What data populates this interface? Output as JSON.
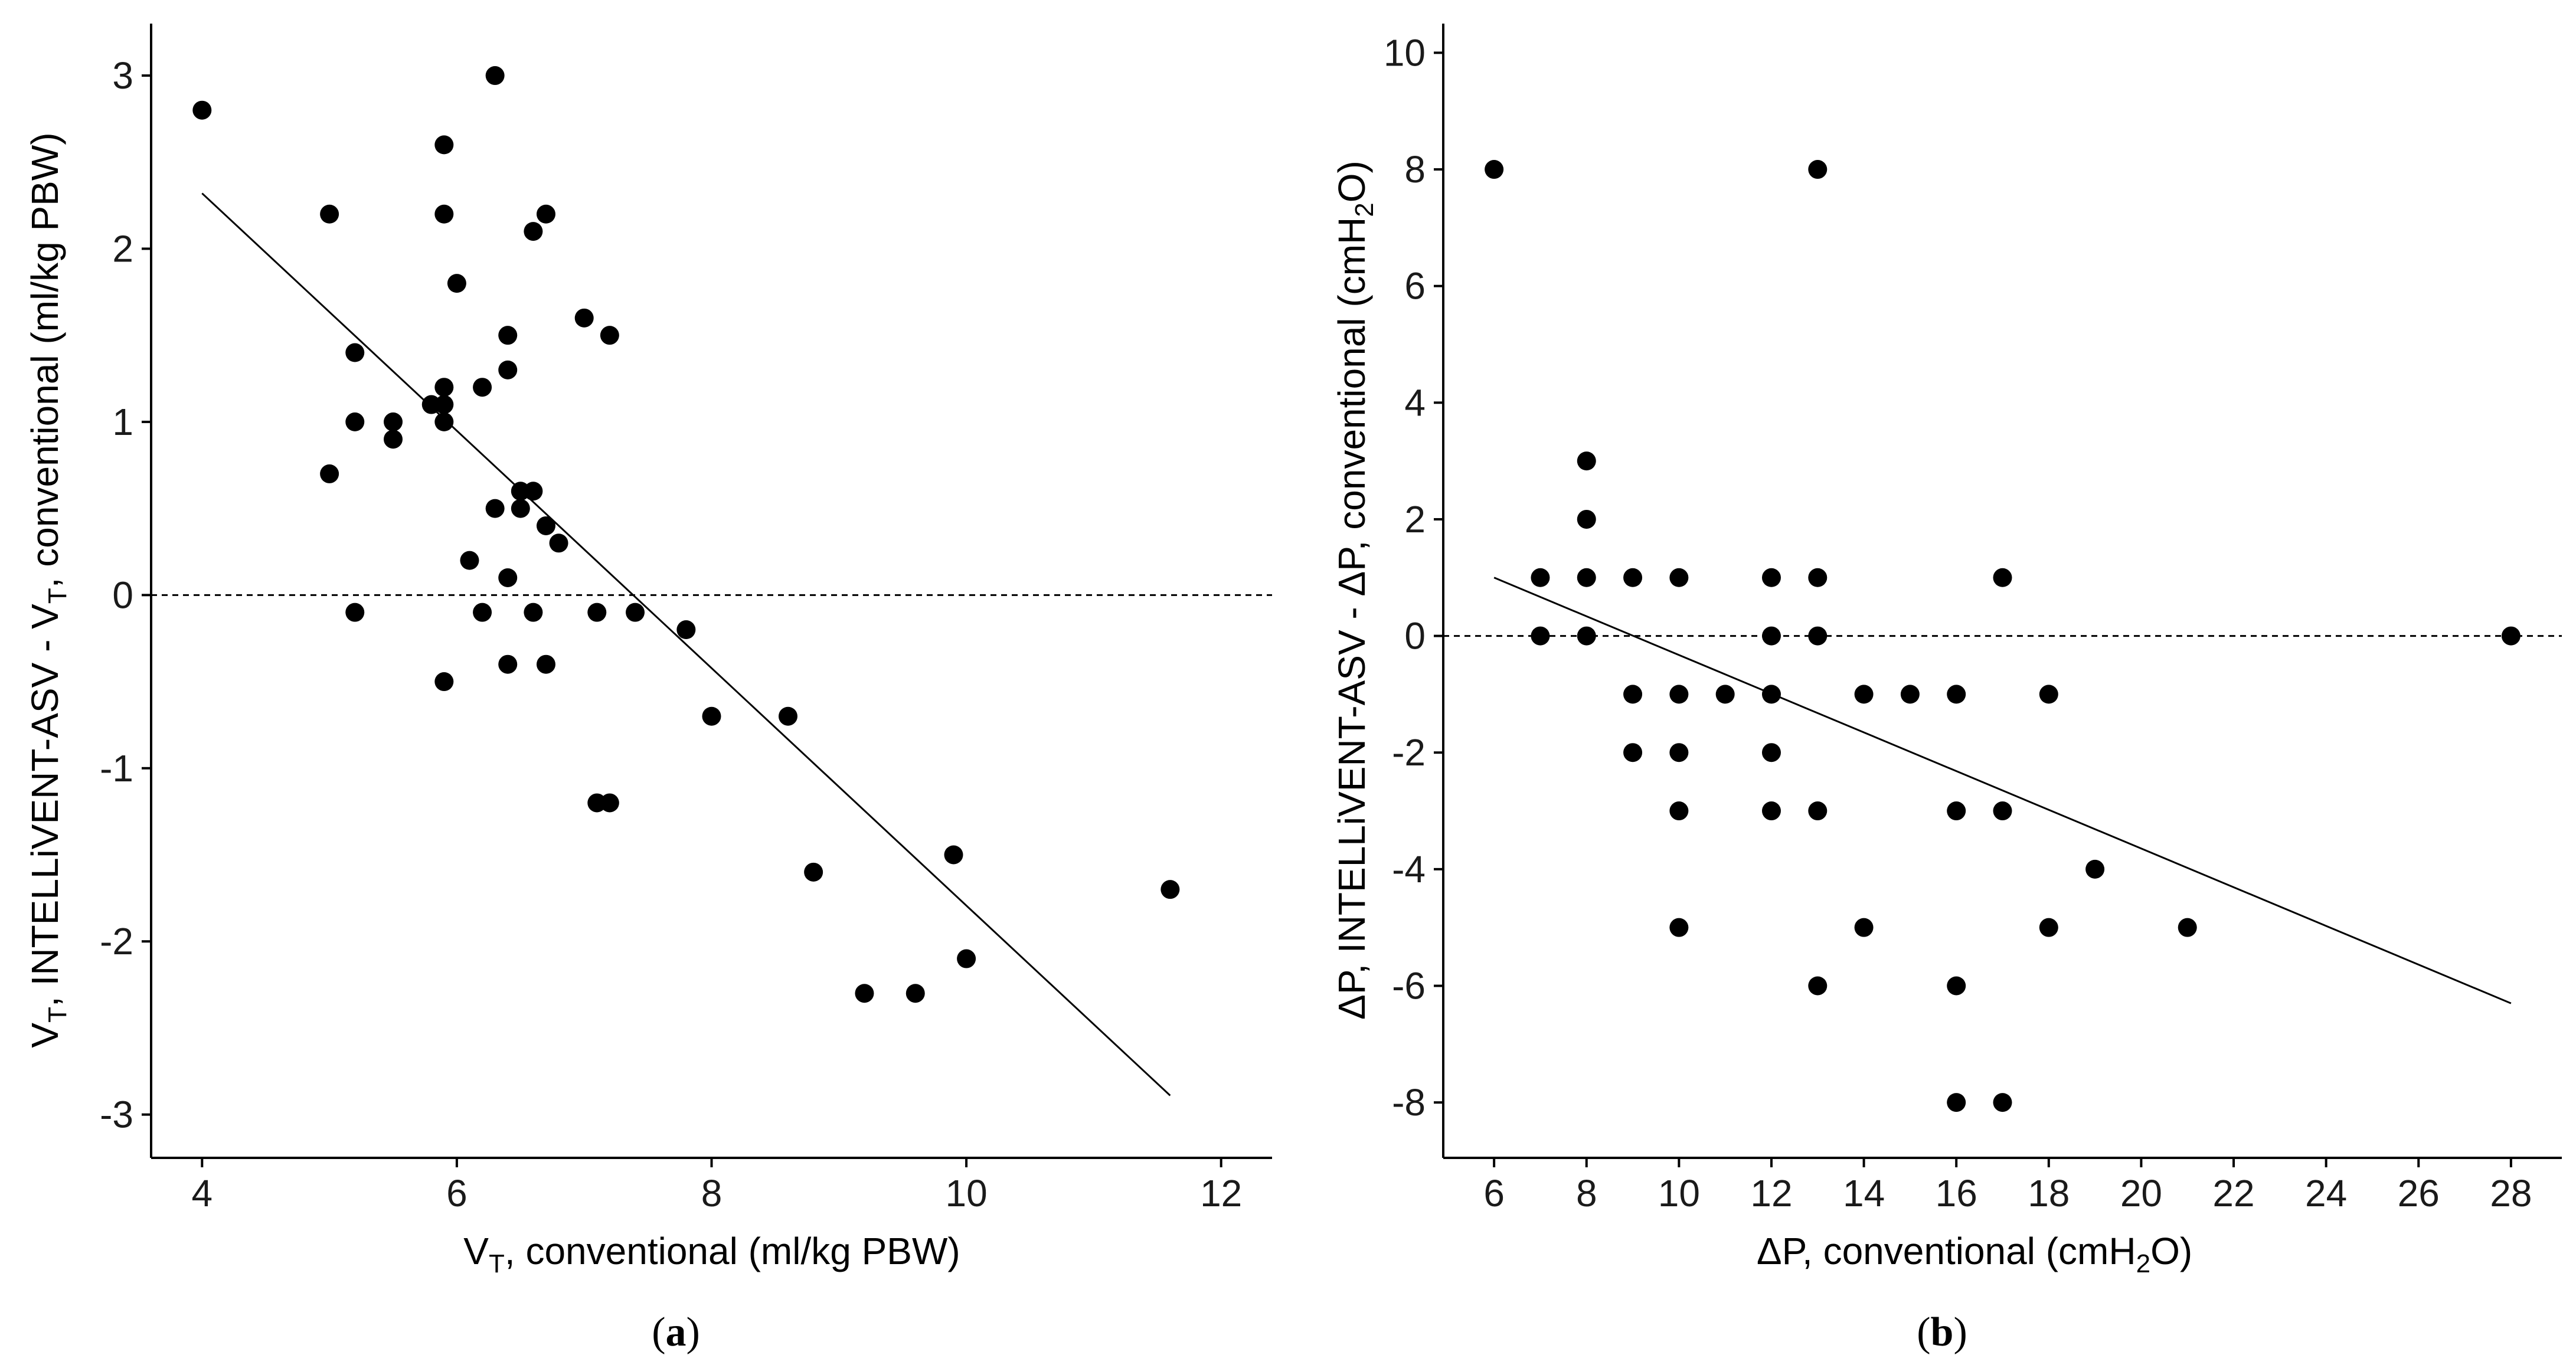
{
  "colors": {
    "point": "#000000",
    "line": "#000000",
    "axis": "#000000",
    "background": "#ffffff"
  },
  "chart_data": [
    {
      "type": "scatter",
      "panel_label": "a",
      "xlabel": {
        "main": "V",
        "sub": "T",
        "rest": ", conventional (ml/kg PBW)"
      },
      "ylabel": {
        "p1": "V",
        "s1": "T",
        "p2": ", INTELLiVENT-ASV - V",
        "s2": "T",
        "p3": ", conventional (ml/kg PBW)"
      },
      "xlim": [
        3.6,
        12.4
      ],
      "ylim": [
        -3.25,
        3.3
      ],
      "xticks": [
        4,
        6,
        8,
        10,
        12
      ],
      "xtick_labels": [
        "4",
        "6",
        "8",
        "10",
        "12"
      ],
      "yticks": [
        3,
        2,
        1,
        0,
        -1,
        -2,
        -3
      ],
      "ytick_labels": [
        "3",
        "2",
        "1",
        "0",
        "-1",
        "-2",
        "-3"
      ],
      "reference_line_y": 0,
      "regression_line": {
        "x": [
          4.0,
          11.6
        ],
        "y": [
          2.32,
          -2.89
        ]
      },
      "points": [
        [
          4.0,
          2.8
        ],
        [
          5.0,
          2.2
        ],
        [
          5.0,
          0.7
        ],
        [
          5.2,
          1.4
        ],
        [
          5.2,
          1.0
        ],
        [
          5.2,
          -0.1
        ],
        [
          5.5,
          1.0
        ],
        [
          5.5,
          0.9
        ],
        [
          5.8,
          1.1
        ],
        [
          5.9,
          2.6
        ],
        [
          5.9,
          2.2
        ],
        [
          5.9,
          1.2
        ],
        [
          5.9,
          1.1
        ],
        [
          5.9,
          1.0
        ],
        [
          5.9,
          -0.5
        ],
        [
          6.0,
          1.8
        ],
        [
          6.1,
          0.2
        ],
        [
          6.2,
          1.2
        ],
        [
          6.2,
          -0.1
        ],
        [
          6.3,
          3.0
        ],
        [
          6.3,
          0.5
        ],
        [
          6.4,
          1.5
        ],
        [
          6.4,
          1.3
        ],
        [
          6.4,
          0.1
        ],
        [
          6.4,
          -0.4
        ],
        [
          6.5,
          0.6
        ],
        [
          6.5,
          0.5
        ],
        [
          6.6,
          2.1
        ],
        [
          6.6,
          0.6
        ],
        [
          6.6,
          -0.1
        ],
        [
          6.7,
          2.2
        ],
        [
          6.7,
          0.4
        ],
        [
          6.7,
          -0.4
        ],
        [
          6.8,
          0.3
        ],
        [
          7.0,
          1.6
        ],
        [
          7.1,
          -0.1
        ],
        [
          7.1,
          -1.2
        ],
        [
          7.2,
          1.5
        ],
        [
          7.2,
          -1.2
        ],
        [
          7.4,
          -0.1
        ],
        [
          7.8,
          -0.2
        ],
        [
          8.0,
          -0.7
        ],
        [
          8.6,
          -0.7
        ],
        [
          8.8,
          -1.6
        ],
        [
          9.2,
          -2.3
        ],
        [
          9.6,
          -2.3
        ],
        [
          9.9,
          -1.5
        ],
        [
          10.0,
          -2.1
        ],
        [
          11.6,
          -1.7
        ]
      ]
    },
    {
      "type": "scatter",
      "panel_label": "b",
      "xlabel": {
        "p1": "ΔP, conventional (cmH",
        "s1": "2",
        "p2": "O)"
      },
      "ylabel": {
        "p1": "ΔP, INTELLiVENT-ASV - ΔP, conventional (cmH",
        "s1": "2",
        "p2": "O)"
      },
      "xlim": [
        4.9,
        29.1
      ],
      "ylim": [
        -8.95,
        10.5
      ],
      "xticks": [
        6,
        8,
        10,
        12,
        14,
        16,
        18,
        20,
        22,
        24,
        26,
        28
      ],
      "xtick_labels": [
        "6",
        "8",
        "10",
        "12",
        "14",
        "16",
        "18",
        "20",
        "22",
        "24",
        "26",
        "28"
      ],
      "yticks": [
        10,
        8,
        6,
        4,
        2,
        0,
        -2,
        -4,
        -6,
        -8
      ],
      "ytick_labels": [
        "10",
        "8",
        "6",
        "4",
        "2",
        "0",
        "-2",
        "-4",
        "-6",
        "-8"
      ],
      "reference_line_y": 0,
      "regression_line": {
        "x": [
          6,
          28
        ],
        "y": [
          1.0,
          -6.3
        ]
      },
      "points": [
        [
          6,
          8
        ],
        [
          7,
          1
        ],
        [
          7,
          0
        ],
        [
          8,
          3
        ],
        [
          8,
          2
        ],
        [
          8,
          1
        ],
        [
          8,
          0
        ],
        [
          9,
          1
        ],
        [
          9,
          -1
        ],
        [
          9,
          -2
        ],
        [
          10,
          1
        ],
        [
          10,
          -1
        ],
        [
          10,
          -2
        ],
        [
          10,
          -3
        ],
        [
          10,
          -5
        ],
        [
          11,
          -1
        ],
        [
          12,
          1
        ],
        [
          12,
          0
        ],
        [
          12,
          -1
        ],
        [
          12,
          -2
        ],
        [
          12,
          -3
        ],
        [
          13,
          8
        ],
        [
          13,
          1
        ],
        [
          13,
          0
        ],
        [
          13,
          -3
        ],
        [
          13,
          -6
        ],
        [
          14,
          -1
        ],
        [
          14,
          -5
        ],
        [
          15,
          -1
        ],
        [
          16,
          -1
        ],
        [
          16,
          -3
        ],
        [
          16,
          -6
        ],
        [
          16,
          -8
        ],
        [
          17,
          1
        ],
        [
          17,
          -3
        ],
        [
          17,
          -8
        ],
        [
          18,
          -1
        ],
        [
          18,
          -5
        ],
        [
          19,
          -4
        ],
        [
          21,
          -5
        ],
        [
          28,
          0
        ]
      ]
    }
  ]
}
